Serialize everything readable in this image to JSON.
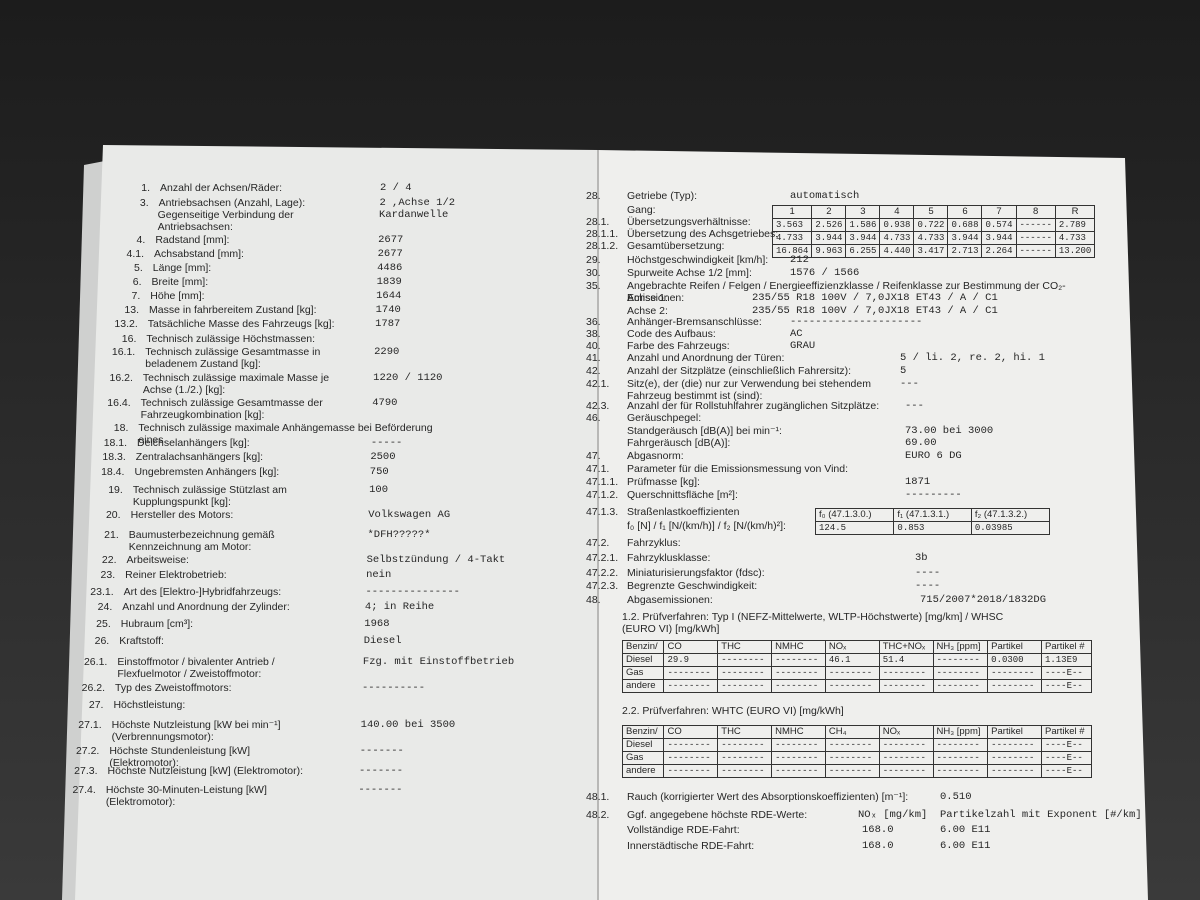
{
  "left_page": {
    "rows": [
      {
        "num": "1.",
        "label": "Anzahl der Achsen/Räder:",
        "value": "2 / 4"
      },
      {
        "num": "3.",
        "label": "Antriebsachsen (Anzahl, Lage):",
        "value": "2 ,Achse 1/2"
      },
      {
        "label": "Gegenseitige Verbindung der Antriebsachsen:",
        "value": "Kardanwelle"
      },
      {
        "num": "4.",
        "label": "Radstand [mm]:",
        "value": "2677"
      },
      {
        "num": "4.1.",
        "label": "Achsabstand [mm]:",
        "value": "2677"
      },
      {
        "num": "5.",
        "label": "Länge [mm]:",
        "value": "4486"
      },
      {
        "num": "6.",
        "label": "Breite [mm]:",
        "value": "1839"
      },
      {
        "num": "7.",
        "label": "Höhe [mm]:",
        "value": "1644"
      },
      {
        "num": "13.",
        "label": "Masse in fahrbereitem Zustand [kg]:",
        "value": "1740"
      },
      {
        "num": "13.2.",
        "label": "Tatsächliche Masse des Fahrzeugs [kg]:",
        "value": "1787"
      },
      {
        "num": "16.",
        "label": "Technisch zulässige Höchstmassen:"
      },
      {
        "num": "16.1.",
        "label": "Technisch zulässige Gesamtmasse in beladenem Zustand [kg]:",
        "value": "2290"
      },
      {
        "num": "16.2.",
        "label": "Technisch zulässige maximale Masse je Achse (1./2.) [kg]:",
        "value": "1220 / 1120"
      },
      {
        "num": "16.4.",
        "label": "Technisch zulässige Gesamtmasse der Fahrzeugkombination [kg]:",
        "value": "4790"
      },
      {
        "num": "18.",
        "label": "Technisch zulässige maximale Anhängemasse bei Beförderung eines"
      },
      {
        "num": "18.1.",
        "label": "Deichselanhängers [kg]:",
        "value": "-----"
      },
      {
        "num": "18.3.",
        "label": "Zentralachsanhängers [kg]:",
        "value": "2500"
      },
      {
        "num": "18.4.",
        "label": "Ungebremsten Anhängers [kg]:",
        "value": "750"
      },
      {
        "num": "19.",
        "label": "Technisch zulässige Stützlast am Kupplungspunkt [kg]:",
        "value": "100"
      },
      {
        "num": "20.",
        "label": "Hersteller des Motors:",
        "value": "Volkswagen AG"
      },
      {
        "num": "21.",
        "label": "Baumusterbezeichnung gemäß Kennzeichnung am Motor:",
        "value": "*DFH?????*"
      },
      {
        "num": "22.",
        "label": "Arbeitsweise:",
        "value": "Selbstzündung / 4-Takt"
      },
      {
        "num": "23.",
        "label": "Reiner Elektrobetrieb:",
        "value": "nein"
      },
      {
        "num": "23.1.",
        "label": "Art des [Elektro-]Hybridfahrzeugs:",
        "value": "---------------"
      },
      {
        "num": "24.",
        "label": "Anzahl und Anordnung der Zylinder:",
        "value": "4; in Reihe"
      },
      {
        "num": "25.",
        "label": "Hubraum [cm³]:",
        "value": "1968"
      },
      {
        "num": "26.",
        "label": "Kraftstoff:",
        "value": "Diesel"
      },
      {
        "num": "26.1.",
        "label": "Einstoffmotor / bivalenter Antrieb / Flexfuelmotor / Zweistoffmotor:",
        "value": "Fzg. mit Einstoffbetrieb"
      },
      {
        "num": "26.2.",
        "label": "Typ des Zweistoffmotors:",
        "value": "----------"
      },
      {
        "num": "27.",
        "label": "Höchstleistung:"
      },
      {
        "num": "27.1.",
        "label": "Höchste Nutzleistung [kW bei min⁻¹] (Verbrennungsmotor):",
        "value": "140.00 bei 3500"
      },
      {
        "num": "27.2.",
        "label": "Höchste Stundenleistung [kW] (Elektromotor):",
        "value": "-------"
      },
      {
        "num": "27.3.",
        "label": "Höchste Nutzleistung [kW] (Elektromotor):",
        "value": "-------"
      },
      {
        "num": "27.4.",
        "label": "Höchste 30-Minuten-Leistung [kW] (Elektromotor):",
        "value": "-------"
      }
    ]
  },
  "right_page": {
    "rows": [
      {
        "num": "28.",
        "label": "Getriebe (Typ):",
        "value": "automatisch"
      },
      {
        "num": "29.",
        "label": "Höchstgeschwindigkeit [km/h]:",
        "value": "212"
      },
      {
        "num": "30.",
        "label": "Spurweite Achse 1/2 [mm]:",
        "value": "1576 / 1566"
      },
      {
        "num": "35.",
        "label": "Angebrachte Reifen / Felgen / Energieeffizienzklasse / Reifenklasse zur Bestimmung der CO₂-Emissionen:"
      },
      {
        "label": "Achse 1:",
        "value": "235/55 R18 100V / 7,0JX18 ET43 / A / C1"
      },
      {
        "label": "Achse 2:",
        "value": "235/55 R18 100V / 7,0JX18 ET43 / A / C1"
      },
      {
        "num": "36.",
        "label": "Anhänger-Bremsanschlüsse:",
        "value": "---------------------"
      },
      {
        "num": "38.",
        "label": "Code des Aufbaus:",
        "value": "AC"
      },
      {
        "num": "40.",
        "label": "Farbe des Fahrzeugs:",
        "value": "GRAU"
      },
      {
        "num": "41.",
        "label": "Anzahl und Anordnung der Türen:",
        "value": "5 / li. 2, re. 2, hi. 1"
      },
      {
        "num": "42.",
        "label": "Anzahl der Sitzplätze (einschließlich Fahrersitz):",
        "value": "5"
      },
      {
        "num": "42.1.",
        "label": "Sitz(e), der (die) nur zur Verwendung bei stehendem Fahrzeug bestimmt ist (sind):",
        "value": "---"
      },
      {
        "num": "42.3.",
        "label": "Anzahl der für Rollstuhlfahrer zugänglichen Sitzplätze:",
        "value": "---"
      },
      {
        "num": "46.",
        "label": "Geräuschpegel:"
      },
      {
        "label": "Standgeräusch [dB(A)] bei min⁻¹:",
        "value": "73.00 bei 3000"
      },
      {
        "label": "Fahrgeräusch [dB(A)]:",
        "value": "69.00"
      },
      {
        "num": "47.",
        "label": "Abgasnorm:",
        "value": "EURO 6 DG"
      },
      {
        "num": "47.1.",
        "label": "Parameter für die Emissionsmessung von Vind:"
      },
      {
        "num": "47.1.1.",
        "label": "Prüfmasse [kg]:",
        "value": "1871"
      },
      {
        "num": "47.1.2.",
        "label": "Querschnittsfläche [m²]:",
        "value": "---------"
      },
      {
        "num": "47.1.3.",
        "label": "Straßenlastkoeffizienten",
        "formula": "f₀ [N] / f₁ [N/(km/h)] / f₂ [N/(km/h)²]:"
      },
      {
        "num": "47.2.",
        "label": "Fahrzyklus:"
      },
      {
        "num": "47.2.1.",
        "label": "Fahrzyklusklasse:",
        "value": "3b"
      },
      {
        "num": "47.2.2.",
        "label": "Miniaturisierungsfaktor (fdsc):",
        "value": "----"
      },
      {
        "num": "47.2.3.",
        "label": "Begrenzte Geschwindigkeit:",
        "value": "----"
      },
      {
        "num": "48.",
        "label": "Abgasemissionen:",
        "value": "715/2007*2018/1832DG"
      },
      {
        "num": "48.1.",
        "label": "Rauch (korrigierter Wert des Absorptionskoeffizienten) [m⁻¹]:",
        "value": "0.510"
      },
      {
        "num": "48.2.",
        "label": "Ggf. angegebene höchste RDE-Werte:",
        "value": "NOₓ [mg/km]",
        "value2": "Partikelzahl mit Exponent [#/km]"
      },
      {
        "label": "Vollständige RDE-Fahrt:",
        "value": "168.0",
        "value2": "6.00 E11"
      },
      {
        "label": "Innerstädtische RDE-Fahrt:",
        "value": "168.0",
        "value2": "6.00 E11"
      }
    ],
    "gear_table": {
      "header_label": "Gang:",
      "columns": [
        "1",
        "2",
        "3",
        "4",
        "5",
        "6",
        "7",
        "8",
        "R"
      ],
      "rows": [
        {
          "num": "28.1.",
          "label": "Übersetzungsverhältnisse:",
          "cells": [
            "3.563",
            "2.526",
            "1.586",
            "0.938",
            "0.722",
            "0.688",
            "0.574",
            "------",
            "2.789"
          ]
        },
        {
          "num": "28.1.1.",
          "label": "Übersetzung des Achsgetriebes:",
          "cells": [
            "4.733",
            "3.944",
            "3.944",
            "4.733",
            "4.733",
            "3.944",
            "3.944",
            "------",
            "4.733"
          ]
        },
        {
          "num": "28.1.2.",
          "label": "Gesamtübersetzung:",
          "cells": [
            "16.864",
            "9.963",
            "6.255",
            "4.440",
            "3.417",
            "2.713",
            "2.264",
            "------",
            "13.200"
          ]
        }
      ]
    },
    "road_load_table": {
      "columns": [
        "f₀ (47.1.3.0.)",
        "f₁ (47.1.3.1.)",
        "f₂ (47.1.3.2.)"
      ],
      "values": [
        "124.5",
        "0.853",
        "0.03985"
      ]
    },
    "emission_test_1": {
      "title": "1.2. Prüfverfahren: Typ I (NEFZ-Mittelwerte, WLTP-Höchstwerte) [mg/km] / WHSC (EURO VI) [mg/kWh]",
      "columns": [
        "Benzin/",
        "CO",
        "THC",
        "NMHC",
        "NOₓ",
        "THC+NOₓ",
        "NH₃ [ppm]",
        "Partikel",
        "Partikel #"
      ],
      "rows": [
        [
          "Diesel",
          "29.9",
          "--------",
          "--------",
          "46.1",
          "51.4",
          "--------",
          "0.0300",
          "1.13E9"
        ],
        [
          "Gas",
          "--------",
          "--------",
          "--------",
          "--------",
          "--------",
          "--------",
          "--------",
          "----E--"
        ],
        [
          "andere",
          "--------",
          "--------",
          "--------",
          "--------",
          "--------",
          "--------",
          "--------",
          "----E--"
        ]
      ]
    },
    "emission_test_2": {
      "title": "2.2. Prüfverfahren: WHTC (EURO VI) [mg/kWh]",
      "columns": [
        "Benzin/",
        "CO",
        "THC",
        "NMHC",
        "CH₄",
        "NOₓ",
        "NH₃ [ppm]",
        "Partikel",
        "Partikel #"
      ],
      "rows": [
        [
          "Diesel",
          "--------",
          "--------",
          "--------",
          "--------",
          "--------",
          "--------",
          "--------",
          "----E--"
        ],
        [
          "Gas",
          "--------",
          "--------",
          "--------",
          "--------",
          "--------",
          "--------",
          "--------",
          "----E--"
        ],
        [
          "andere",
          "--------",
          "--------",
          "--------",
          "--------",
          "--------",
          "--------",
          "--------",
          "----E--"
        ]
      ]
    }
  }
}
